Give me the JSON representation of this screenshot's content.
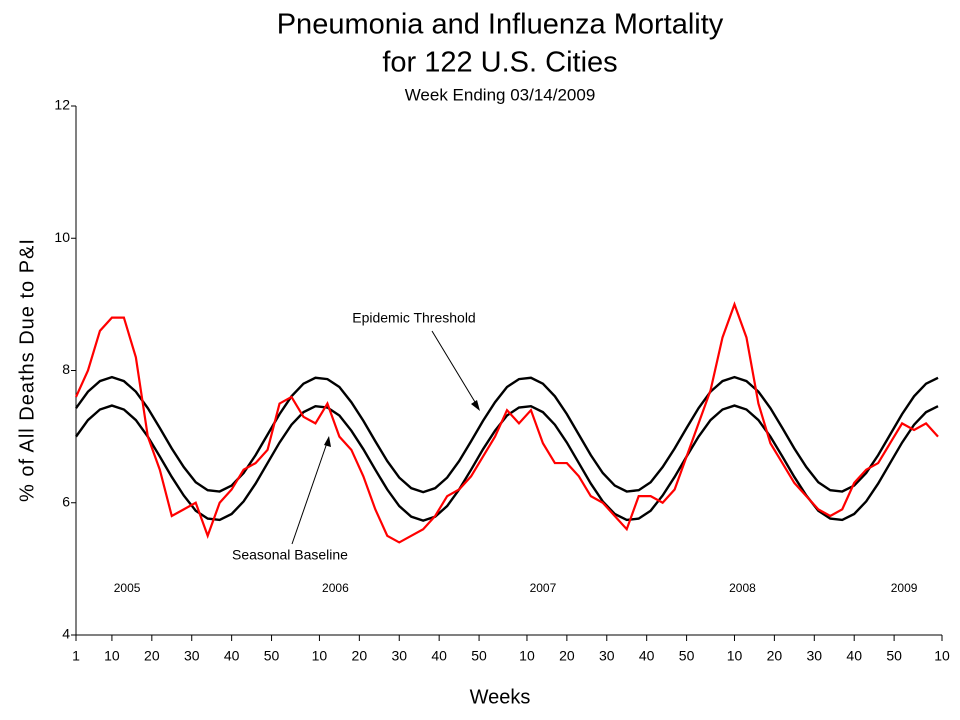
{
  "chart_data": {
    "type": "line",
    "title": "Pneumonia and Influenza Mortality",
    "title_line2": "for 122 U.S. Cities",
    "subtitle": "Week Ending 03/14/2009",
    "x_label": "Weeks",
    "y_label": "% of All Deaths Due to P&I",
    "annotations": [
      "Epidemic Threshold",
      "Seasonal Baseline"
    ],
    "year_labels": [
      "2005",
      "2006",
      "2007",
      "2008",
      "2009"
    ],
    "xlim": [
      1,
      218
    ],
    "xticks": [
      1,
      10,
      20,
      30,
      40,
      50,
      {
        "value": 62,
        "label": "10"
      },
      {
        "value": 72,
        "label": "20"
      },
      {
        "value": 82,
        "label": "30"
      },
      {
        "value": 92,
        "label": "40"
      },
      {
        "value": 102,
        "label": "50"
      },
      {
        "value": 114,
        "label": "10"
      },
      {
        "value": 124,
        "label": "20"
      },
      {
        "value": 134,
        "label": "30"
      },
      {
        "value": 144,
        "label": "40"
      },
      {
        "value": 154,
        "label": "50"
      },
      {
        "value": 166,
        "label": "10"
      },
      {
        "value": 176,
        "label": "20"
      },
      {
        "value": 186,
        "label": "30"
      },
      {
        "value": 196,
        "label": "40"
      },
      {
        "value": 206,
        "label": "50"
      },
      {
        "value": 218,
        "label": "10"
      }
    ],
    "ylim": [
      4,
      12
    ],
    "yticks": [
      4,
      6,
      8,
      10,
      12
    ],
    "x": [
      1,
      4,
      7,
      10,
      13,
      16,
      19,
      22,
      25,
      28,
      31,
      34,
      37,
      40,
      43,
      46,
      49,
      52,
      55,
      58,
      61,
      64,
      67,
      70,
      73,
      76,
      79,
      82,
      85,
      88,
      91,
      94,
      97,
      100,
      103,
      106,
      109,
      112,
      115,
      118,
      121,
      124,
      127,
      130,
      133,
      136,
      139,
      142,
      145,
      148,
      151,
      154,
      157,
      160,
      163,
      166,
      169,
      172,
      175,
      178,
      181,
      184,
      187,
      190,
      193,
      196,
      199,
      202,
      205,
      208,
      211,
      214,
      217
    ],
    "series": [
      {
        "color": "#ff0000",
        "values": [
          7.6,
          8.0,
          8.6,
          8.8,
          8.8,
          8.2,
          7.0,
          6.5,
          5.8,
          5.9,
          6.0,
          5.5,
          6.0,
          6.2,
          6.5,
          6.6,
          6.8,
          7.5,
          7.6,
          7.3,
          7.2,
          7.5,
          7.0,
          6.8,
          6.4,
          5.9,
          5.5,
          5.4,
          5.5,
          5.6,
          5.8,
          6.1,
          6.2,
          6.4,
          6.7,
          7.0,
          7.4,
          7.2,
          7.4,
          6.9,
          6.6,
          6.6,
          6.4,
          6.1,
          6.0,
          5.8,
          5.6,
          6.1,
          6.1,
          6.0,
          6.2,
          6.7,
          7.2,
          7.7,
          8.5,
          9.0,
          8.5,
          7.5,
          6.9,
          6.6,
          6.3,
          6.1,
          5.9,
          5.8,
          5.9,
          6.3,
          6.5,
          6.6,
          6.9,
          7.2,
          7.1,
          7.2,
          7.0
        ]
      },
      {
        "color": "#000000",
        "values": [
          7.43,
          7.68,
          7.84,
          7.9,
          7.84,
          7.68,
          7.43,
          7.13,
          6.82,
          6.54,
          6.31,
          6.19,
          6.17,
          6.26,
          6.45,
          6.72,
          7.03,
          7.34,
          7.61,
          7.8,
          7.89,
          7.87,
          7.75,
          7.52,
          7.24,
          6.93,
          6.63,
          6.38,
          6.22,
          6.16,
          6.22,
          6.38,
          6.63,
          6.93,
          7.24,
          7.52,
          7.75,
          7.87,
          7.89,
          7.8,
          7.61,
          7.34,
          7.03,
          6.72,
          6.45,
          6.26,
          6.17,
          6.19,
          6.31,
          6.54,
          6.82,
          7.13,
          7.43,
          7.68,
          7.84,
          7.9,
          7.84,
          7.68,
          7.43,
          7.13,
          6.82,
          6.54,
          6.31,
          6.19,
          6.17,
          6.26,
          6.45,
          6.72,
          7.03,
          7.34,
          7.61,
          7.8,
          7.89
        ]
      },
      {
        "color": "#000000",
        "values": [
          7.0,
          7.25,
          7.41,
          7.47,
          7.41,
          7.25,
          7.0,
          6.7,
          6.39,
          6.11,
          5.88,
          5.76,
          5.74,
          5.83,
          6.02,
          6.29,
          6.6,
          6.91,
          7.18,
          7.37,
          7.46,
          7.44,
          7.32,
          7.09,
          6.81,
          6.5,
          6.2,
          5.95,
          5.79,
          5.73,
          5.79,
          5.95,
          6.2,
          6.5,
          6.81,
          7.09,
          7.32,
          7.44,
          7.46,
          7.37,
          7.18,
          6.91,
          6.6,
          6.29,
          6.02,
          5.83,
          5.74,
          5.76,
          5.88,
          6.11,
          6.39,
          6.7,
          7.0,
          7.25,
          7.41,
          7.47,
          7.41,
          7.25,
          7.0,
          6.7,
          6.39,
          6.11,
          5.88,
          5.76,
          5.74,
          5.83,
          6.02,
          6.29,
          6.6,
          6.91,
          7.18,
          7.37,
          7.46
        ]
      }
    ]
  }
}
